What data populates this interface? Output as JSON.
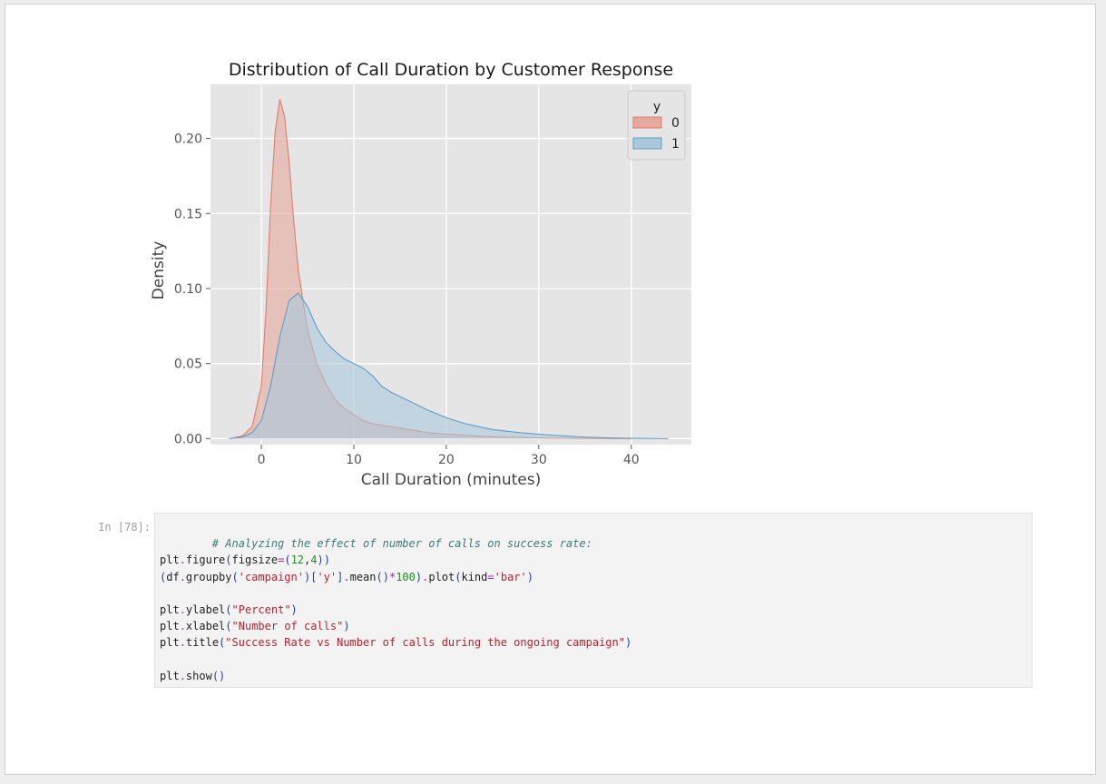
{
  "cell": {
    "prompt": "In [78]:",
    "code": {
      "comment": "# Analyzing the effect of number of calls on success rate:",
      "line_figure": {
        "obj": "plt",
        "dot": ".",
        "fn": "figure",
        "open": "(",
        "kw": "figsize",
        "eq": "=",
        "open2": "(",
        "n1": "12",
        "comma": ",",
        "n2": "4",
        "close": "))"
      },
      "line_groupby": {
        "open": "(",
        "df": "df",
        "dot1": ".",
        "groupby": "groupby",
        "paren1": "(",
        "arg1": "'campaign'",
        "paren2": ")[",
        "arg2": "'y'",
        "paren3": "]",
        "dot2": ".",
        "mean": "mean",
        "paren4": "()",
        "mul": "*",
        "hundred": "100",
        "paren5": ")",
        "dot3": ".",
        "plot": "plot",
        "paren6": "(",
        "kw": "kind",
        "eq": "=",
        "kind": "'bar'",
        "paren7": ")"
      },
      "line_ylabel": {
        "prefix": "plt",
        "dot": ".",
        "fn": "ylabel",
        "open": "(",
        "arg": "\"Percent\"",
        "close": ")"
      },
      "line_xlabel": {
        "prefix": "plt",
        "dot": ".",
        "fn": "xlabel",
        "open": "(",
        "arg": "\"Number of calls\"",
        "close": ")"
      },
      "line_title": {
        "prefix": "plt",
        "dot": ".",
        "fn": "title",
        "open": "(",
        "arg": "\"Success Rate vs Number of calls during the ongoing campaign\"",
        "close": ")"
      },
      "line_show": {
        "prefix": "plt",
        "dot": ".",
        "fn": "show",
        "parens": "()"
      }
    }
  },
  "chart_data": {
    "type": "area",
    "title": "Distribution of Call Duration by Customer Response",
    "xlabel": "Call Duration (minutes)",
    "ylabel": "Density",
    "xlim": [
      -5.5,
      46.5
    ],
    "ylim": [
      -0.004,
      0.236
    ],
    "xticks": [
      0,
      10,
      20,
      30,
      40
    ],
    "yticks": [
      0.0,
      0.05,
      0.1,
      0.15,
      0.2
    ],
    "ytick_labels": [
      "0.00",
      "0.05",
      "0.10",
      "0.15",
      "0.20"
    ],
    "grid": true,
    "legend": {
      "title": "y",
      "placement": "top-right"
    },
    "series": [
      {
        "name": "0",
        "color": "#e07b6a",
        "fill": "#e6a89c",
        "x": [
          -3.3,
          -2,
          -1,
          0,
          0.5,
          1,
          1.5,
          2,
          2.5,
          3,
          3.5,
          4,
          5,
          6,
          7,
          8,
          9,
          10,
          11,
          12,
          14,
          16,
          18,
          20,
          24,
          28,
          32,
          36,
          40
        ],
        "values": [
          0,
          0.002,
          0.008,
          0.035,
          0.085,
          0.155,
          0.205,
          0.226,
          0.215,
          0.185,
          0.145,
          0.112,
          0.072,
          0.05,
          0.036,
          0.026,
          0.02,
          0.016,
          0.012,
          0.01,
          0.008,
          0.006,
          0.004,
          0.003,
          0.0015,
          0.0007,
          0.0003,
          0.0001,
          0
        ]
      },
      {
        "name": "1",
        "color": "#5e9ec6",
        "fill": "#a9c8da",
        "x": [
          -3.5,
          -2,
          -1,
          0,
          1,
          2,
          3,
          4,
          5,
          6,
          7,
          8,
          9,
          10,
          11,
          12,
          13,
          14,
          16,
          18,
          20,
          22,
          25,
          28,
          31,
          34,
          37,
          40,
          44
        ],
        "values": [
          0,
          0.001,
          0.004,
          0.012,
          0.035,
          0.068,
          0.092,
          0.097,
          0.088,
          0.074,
          0.064,
          0.058,
          0.053,
          0.05,
          0.047,
          0.042,
          0.035,
          0.031,
          0.025,
          0.019,
          0.014,
          0.01,
          0.006,
          0.004,
          0.0025,
          0.0013,
          0.0006,
          0.0002,
          0
        ]
      }
    ]
  }
}
